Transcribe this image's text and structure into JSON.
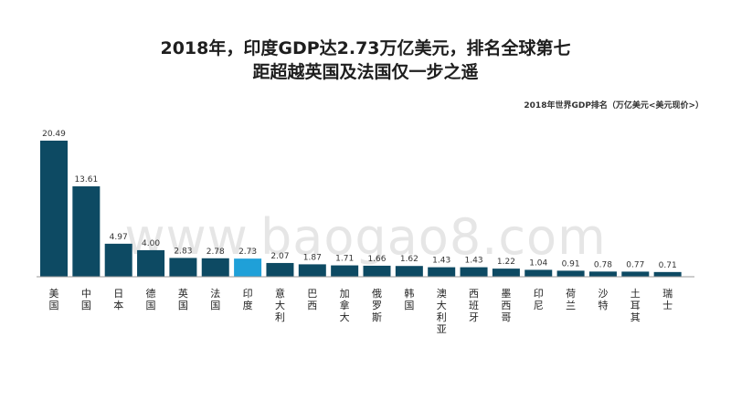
{
  "title_line1": "2018年，印度GDP达2.73万亿美元，排名全球第七",
  "title_line2": "距超越英国及法国仅一步之遥",
  "watermark": "www.baogao8.com",
  "chart_data": {
    "type": "bar",
    "title": "2018年世界GDP排名（万亿美元<美元现价>）",
    "categories": [
      "美国",
      "中国",
      "日本",
      "德国",
      "英国",
      "法国",
      "印度",
      "意大利",
      "巴西",
      "加拿大",
      "俄罗斯",
      "韩国",
      "澳大利亚",
      "西班牙",
      "墨西哥",
      "印尼",
      "荷兰",
      "沙特",
      "土耳其",
      "瑞士"
    ],
    "values": [
      20.49,
      13.61,
      4.97,
      4.0,
      2.83,
      2.78,
      2.73,
      2.07,
      1.87,
      1.71,
      1.66,
      1.62,
      1.43,
      1.43,
      1.22,
      1.04,
      0.91,
      0.78,
      0.77,
      0.71
    ],
    "value_labels": [
      "20.49",
      "13.61",
      "4.97",
      "4.00",
      "2.83",
      "2.78",
      "2.73",
      "2.07",
      "1.87",
      "1.71",
      "1.66",
      "1.62",
      "1.43",
      "1.43",
      "1.22",
      "1.04",
      "0.91",
      "0.78",
      "0.77",
      "0.71"
    ],
    "highlight_index": 6,
    "colors": {
      "bar": "#0d4a63",
      "highlight": "#1fa0d8",
      "axis": "#9a9a9a"
    },
    "ylim": [
      0,
      20.49
    ],
    "grid": false,
    "legend": "none"
  }
}
